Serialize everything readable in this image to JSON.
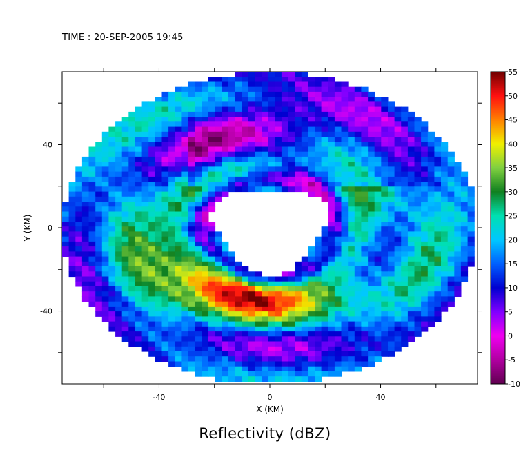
{
  "time_label": "TIME : 20-SEP-2005 19:45",
  "title": "Reflectivity (dBZ)",
  "chart_data": {
    "type": "heatmap",
    "title": "Reflectivity (dBZ)",
    "xlabel": "X (KM)",
    "ylabel": "Y (KM)",
    "xlim": [
      -75,
      75
    ],
    "ylim": [
      -75,
      75
    ],
    "x_ticks": [
      -40,
      0,
      40
    ],
    "y_ticks": [
      40,
      0,
      -40
    ],
    "x_minor_ticks": [
      -60,
      -20,
      20,
      60
    ],
    "y_minor_ticks": [
      60,
      20,
      -20,
      -60
    ],
    "grid": false,
    "colorbar": {
      "label_values": [
        "55",
        "50",
        "45",
        "40",
        "35",
        "30",
        "25",
        "20",
        "15",
        "10",
        "5",
        "0",
        "-5",
        "-10"
      ],
      "min": -10,
      "max": 55,
      "stops": [
        {
          "v": -10,
          "c": "#600050"
        },
        {
          "v": -5,
          "c": "#b000a0"
        },
        {
          "v": 0,
          "c": "#f000f0"
        },
        {
          "v": 5,
          "c": "#8000ff"
        },
        {
          "v": 10,
          "c": "#0000d0"
        },
        {
          "v": 15,
          "c": "#0060ff"
        },
        {
          "v": 20,
          "c": "#00c8ff"
        },
        {
          "v": 25,
          "c": "#00e0b0"
        },
        {
          "v": 30,
          "c": "#108020"
        },
        {
          "v": 35,
          "c": "#80d040"
        },
        {
          "v": 40,
          "c": "#f0f000"
        },
        {
          "v": 45,
          "c": "#ff8000"
        },
        {
          "v": 50,
          "c": "#ff1010"
        },
        {
          "v": 55,
          "c": "#700000"
        }
      ]
    },
    "radar_range_km": 75,
    "eye_radius_km": 20,
    "notes": "Hurricane radar reflectivity field with a clear eye near the origin, strong eyewall and spiral rain bands"
  }
}
